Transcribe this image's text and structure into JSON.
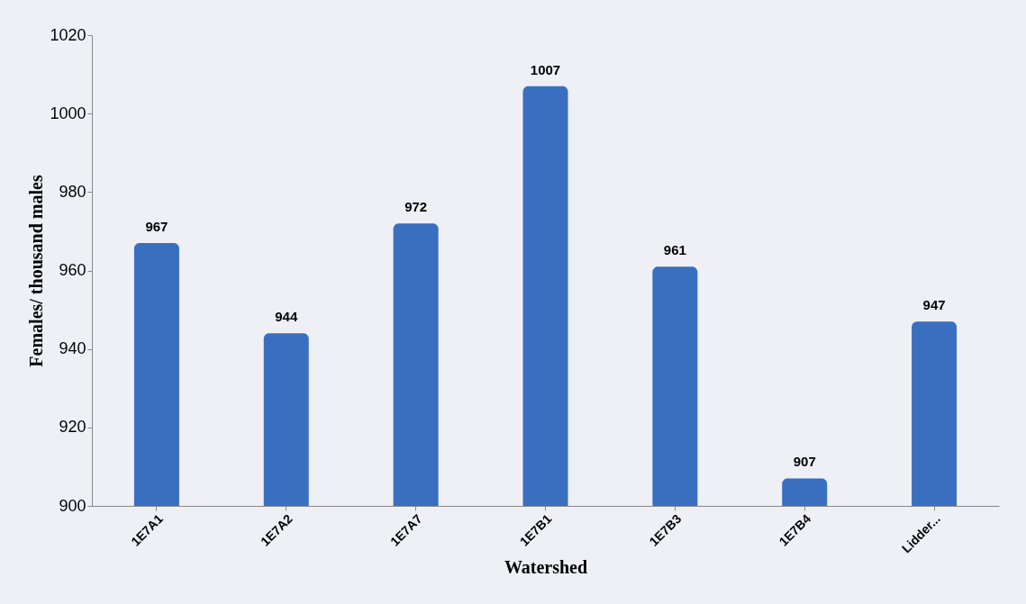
{
  "chart_data": {
    "type": "bar",
    "xlabel": "Watershed",
    "ylabel": "Females/ thousand males",
    "categories": [
      "1E7A1",
      "1E7A2",
      "1E7A7",
      "1E7B1",
      "1E7B3",
      "1E7B4",
      "Lidder..."
    ],
    "values": [
      967,
      944,
      972,
      1007,
      961,
      907,
      947
    ],
    "color": "#3a6fc0",
    "ylim": [
      900,
      1020
    ],
    "yticks": [
      900,
      920,
      940,
      960,
      980,
      1000,
      1020
    ],
    "grid": false,
    "data_labels": true
  }
}
